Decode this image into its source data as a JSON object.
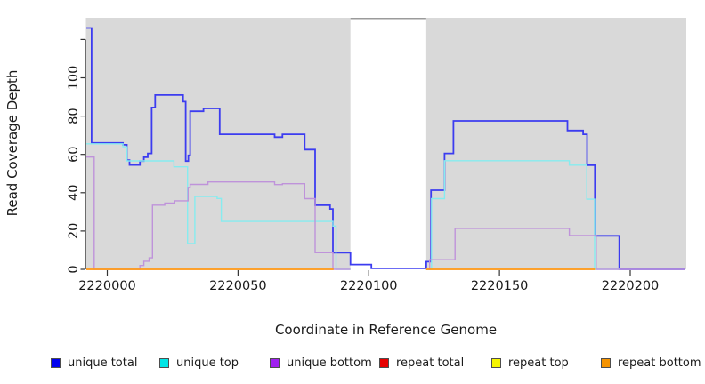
{
  "chart_data": {
    "type": "line",
    "subtype": "step-coverage",
    "xlabel": "Coordinate in Reference Genome",
    "ylabel": "Read Coverage Depth",
    "xlim": [
      2219992,
      2220221
    ],
    "ylim": [
      0,
      131
    ],
    "grid": false,
    "legend_position": "bottom",
    "no_data_region": [
      2220093,
      2220122
    ],
    "colors": {
      "panel_bg": "#d9d9d9",
      "no_data_band": "#ffffff",
      "band_top_border": "#9b9b9b",
      "axis": "#000000",
      "tick": "#333333"
    },
    "x_ticks": [
      {
        "v": 2220000,
        "label": "2220000"
      },
      {
        "v": 2220050,
        "label": "2220050"
      },
      {
        "v": 2220100,
        "label": "2220100"
      },
      {
        "v": 2220150,
        "label": "2220150"
      },
      {
        "v": 2220200,
        "label": "2220200"
      }
    ],
    "y_ticks": [
      {
        "v": 0,
        "label": "0"
      },
      {
        "v": 20,
        "label": "20"
      },
      {
        "v": 40,
        "label": "40"
      },
      {
        "v": 60,
        "label": "60"
      },
      {
        "v": 80,
        "label": "80"
      },
      {
        "v": 100,
        "label": "100"
      },
      {
        "v": 120,
        "label": ""
      }
    ],
    "series": [
      {
        "id": "unique-total",
        "label": "unique total",
        "swatch": "#0000ee",
        "line": "#3c3cf0",
        "width": 1.8,
        "segments": [
          [
            [
              2219992,
              126
            ],
            [
              2219994,
              126
            ],
            [
              2219994,
              66
            ],
            [
              2220006,
              66
            ],
            [
              2220006,
              65
            ],
            [
              2220007.5,
              65
            ],
            [
              2220007.5,
              57
            ],
            [
              2220008.5,
              57
            ],
            [
              2220008.5,
              54.5
            ],
            [
              2220012.5,
              54.5
            ],
            [
              2220012.5,
              56.5
            ],
            [
              2220014,
              56.5
            ],
            [
              2220014,
              58.5
            ],
            [
              2220015.5,
              58.5
            ],
            [
              2220015.5,
              60.5
            ],
            [
              2220017,
              60.5
            ],
            [
              2220017,
              84.5
            ],
            [
              2220018.3,
              84.5
            ],
            [
              2220018.3,
              91
            ],
            [
              2220029,
              91
            ],
            [
              2220029,
              87.5
            ],
            [
              2220030,
              87.5
            ],
            [
              2220030,
              56.5
            ],
            [
              2220031,
              56.5
            ],
            [
              2220031,
              59.5
            ],
            [
              2220031.7,
              59.5
            ],
            [
              2220031.7,
              82.5
            ],
            [
              2220036.8,
              82.5
            ],
            [
              2220036.8,
              84
            ],
            [
              2220043,
              84
            ],
            [
              2220043,
              70.5
            ],
            [
              2220064,
              70.5
            ],
            [
              2220064,
              69
            ],
            [
              2220067,
              69
            ],
            [
              2220067,
              70.5
            ],
            [
              2220075.5,
              70.5
            ],
            [
              2220075.5,
              62.5
            ],
            [
              2220079.5,
              62.5
            ],
            [
              2220079.5,
              33.5
            ],
            [
              2220085.2,
              33.5
            ],
            [
              2220085.2,
              31.5
            ],
            [
              2220086.3,
              31.5
            ],
            [
              2220086.3,
              8.7
            ],
            [
              2220093,
              8.7
            ],
            [
              2220093,
              2.5
            ],
            [
              2220101,
              2.5
            ],
            [
              2220101,
              0.5
            ],
            [
              2220122,
              0.5
            ],
            [
              2220122,
              4
            ],
            [
              2220123.8,
              4
            ],
            [
              2220123.8,
              41.3
            ],
            [
              2220129,
              41.3
            ],
            [
              2220129,
              60.5
            ],
            [
              2220132.4,
              60.5
            ],
            [
              2220132.4,
              77.5
            ],
            [
              2220176,
              77.5
            ],
            [
              2220176,
              72.5
            ],
            [
              2220182,
              72.5
            ],
            [
              2220182,
              70.5
            ],
            [
              2220183.5,
              70.5
            ],
            [
              2220183.5,
              54.4
            ],
            [
              2220186.5,
              54.4
            ],
            [
              2220186.5,
              17.5
            ],
            [
              2220195.8,
              17.5
            ],
            [
              2220195.8,
              0
            ],
            [
              2220221,
              0
            ]
          ]
        ]
      },
      {
        "id": "unique-top",
        "label": "unique top",
        "swatch": "#00e5e5",
        "line": "#86ecef",
        "width": 1.4,
        "segments": [
          [
            [
              2219992,
              65.5
            ],
            [
              2220006,
              65.5
            ],
            [
              2220006,
              64
            ],
            [
              2220007.5,
              64
            ],
            [
              2220007.5,
              56.6
            ],
            [
              2220025.5,
              56.6
            ],
            [
              2220025.5,
              53.5
            ],
            [
              2220030.7,
              53.5
            ],
            [
              2220030.7,
              13.5
            ],
            [
              2220033.5,
              13.5
            ],
            [
              2220033.5,
              38
            ],
            [
              2220042,
              38
            ],
            [
              2220042,
              37
            ],
            [
              2220043.6,
              37
            ],
            [
              2220043.6,
              25
            ],
            [
              2220086.3,
              25
            ],
            [
              2220086.3,
              22.6
            ],
            [
              2220087.5,
              22.6
            ],
            [
              2220087.5,
              0
            ],
            [
              2220093,
              0
            ]
          ],
          [
            [
              2220122,
              0
            ],
            [
              2220124,
              0
            ],
            [
              2220124,
              36.9
            ],
            [
              2220129,
              36.9
            ],
            [
              2220129,
              56.7
            ],
            [
              2220176.7,
              56.7
            ],
            [
              2220176.7,
              54.4
            ],
            [
              2220183.4,
              54.4
            ],
            [
              2220183.4,
              36.6
            ],
            [
              2220186.4,
              36.6
            ],
            [
              2220186.4,
              0
            ],
            [
              2220196,
              0
            ]
          ]
        ]
      },
      {
        "id": "unique-bottom",
        "label": "unique bottom",
        "swatch": "#a020f0",
        "line": "#bf93da",
        "width": 1.4,
        "segments": [
          [
            [
              2219992,
              58.6
            ],
            [
              2219995,
              58.6
            ],
            [
              2219995,
              0
            ],
            [
              2220012.5,
              0
            ],
            [
              2220012.5,
              2
            ],
            [
              2220014,
              2
            ],
            [
              2220014,
              4.2
            ],
            [
              2220016,
              4.2
            ],
            [
              2220016,
              6
            ],
            [
              2220017.3,
              6
            ],
            [
              2220017.3,
              33.5
            ],
            [
              2220022,
              33.5
            ],
            [
              2220022,
              34.6
            ],
            [
              2220025.8,
              34.6
            ],
            [
              2220025.8,
              35.8
            ],
            [
              2220030.9,
              35.8
            ],
            [
              2220030.9,
              42.8
            ],
            [
              2220031.7,
              42.8
            ],
            [
              2220031.7,
              44.3
            ],
            [
              2220038.5,
              44.3
            ],
            [
              2220038.5,
              45.6
            ],
            [
              2220064,
              45.6
            ],
            [
              2220064,
              44.2
            ],
            [
              2220067,
              44.2
            ],
            [
              2220067,
              44.7
            ],
            [
              2220075.5,
              44.7
            ],
            [
              2220075.5,
              36.9
            ],
            [
              2220079.5,
              36.9
            ],
            [
              2220079.5,
              8.7
            ],
            [
              2220086.3,
              8.7
            ],
            [
              2220086.3,
              0
            ],
            [
              2220093,
              0
            ]
          ],
          [
            [
              2220122,
              0
            ],
            [
              2220123.3,
              0
            ],
            [
              2220123.3,
              5
            ],
            [
              2220133,
              5
            ],
            [
              2220133,
              21.4
            ],
            [
              2220176.7,
              21.4
            ],
            [
              2220176.7,
              17.7
            ],
            [
              2220187,
              17.7
            ],
            [
              2220187,
              0
            ],
            [
              2220221,
              0
            ]
          ]
        ]
      },
      {
        "id": "repeat-total",
        "label": "repeat total",
        "swatch": "#e60000",
        "line": "#e60000",
        "width": 1.3,
        "segments": [
          [
            [
              2219992,
              0
            ],
            [
              2220086.5,
              0
            ]
          ],
          [
            [
              2220122,
              0
            ],
            [
              2220186.5,
              0
            ]
          ]
        ]
      },
      {
        "id": "repeat-top",
        "label": "repeat top",
        "swatch": "#f5f500",
        "line": "#f5f500",
        "width": 1.3,
        "segments": [
          [
            [
              2219992,
              0
            ],
            [
              2220086.5,
              0
            ]
          ],
          [
            [
              2220122,
              0
            ],
            [
              2220186.5,
              0
            ]
          ]
        ]
      },
      {
        "id": "repeat-bottom",
        "label": "repeat bottom",
        "swatch": "#f59300",
        "line": "#ff9c21",
        "width": 1.8,
        "segments": [
          [
            [
              2219992,
              0
            ],
            [
              2220086.5,
              0
            ]
          ],
          [
            [
              2220122,
              0
            ],
            [
              2220186.5,
              0
            ]
          ]
        ]
      }
    ]
  }
}
